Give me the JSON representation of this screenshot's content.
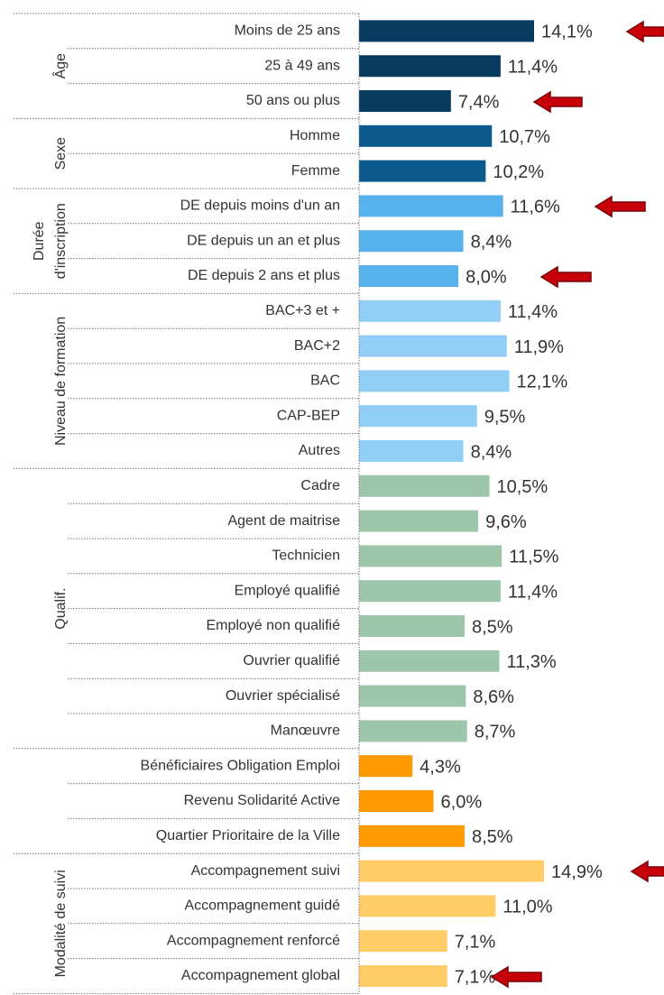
{
  "chart_data": {
    "type": "bar",
    "series": [
      {
        "name": "Âge",
        "color": "#063a5e",
        "categories": [
          "Moins de 25 ans",
          "25 à 49 ans",
          "50 ans ou plus"
        ],
        "values": [
          14.1,
          11.4,
          7.4
        ],
        "value_labels": [
          "14,1%",
          "11,4%",
          "7,4%"
        ]
      },
      {
        "name": "Sexe",
        "color": "#0a5a8e",
        "categories": [
          "Homme",
          "Femme"
        ],
        "values": [
          10.7,
          10.2
        ],
        "value_labels": [
          "10,7%",
          "10,2%"
        ]
      },
      {
        "name": [
          "Durée",
          "d'inscription"
        ],
        "color": "#56b2ec",
        "categories": [
          "DE depuis moins d'un an",
          "DE depuis un an et plus",
          "DE depuis 2 ans et plus"
        ],
        "values": [
          11.6,
          8.4,
          8.0
        ],
        "value_labels": [
          "11,6%",
          "8,4%",
          "8,0%"
        ]
      },
      {
        "name": "Niveau de formation",
        "color": "#92cdf6",
        "categories": [
          "BAC+3 et +",
          "BAC+2",
          "BAC",
          "CAP-BEP",
          "Autres"
        ],
        "values": [
          11.4,
          11.9,
          12.1,
          9.5,
          8.4
        ],
        "value_labels": [
          "11,4%",
          "11,9%",
          "12,1%",
          "9,5%",
          "8,4%"
        ]
      },
      {
        "name": "Qualif.",
        "color": "#9dc6ab",
        "categories": [
          "Cadre",
          "Agent de maitrise",
          "Technicien",
          "Employé qualifié",
          "Employé non qualifié",
          "Ouvrier qualifié",
          "Ouvrier spécialisé",
          "Manœuvre"
        ],
        "values": [
          10.5,
          9.6,
          11.5,
          11.4,
          8.5,
          11.3,
          8.6,
          8.7
        ],
        "value_labels": [
          "10,5%",
          "9,6%",
          "11,5%",
          "11,4%",
          "8,5%",
          "11,3%",
          "8,6%",
          "8,7%"
        ]
      },
      {
        "color": "#ff9a00",
        "categories": [
          "Bénéficiaires Obligation Emploi",
          "Revenu Solidarité Active",
          "Quartier Prioritaire de la Ville"
        ],
        "values": [
          4.3,
          6.0,
          8.5
        ],
        "value_labels": [
          "4,3%",
          "6,0%",
          "8,5%"
        ]
      },
      {
        "name": "Modalité de suivi",
        "color": "#ffcc66",
        "categories": [
          "Accompagnement suivi",
          "Accompagnement guidé",
          "Accompagnement renforcé",
          "Accompagnement global"
        ],
        "values": [
          14.9,
          11.0,
          7.1,
          7.1
        ],
        "value_labels": [
          "14,9%",
          "11,0%",
          "7,1%",
          "7,1%"
        ]
      }
    ]
  }
}
